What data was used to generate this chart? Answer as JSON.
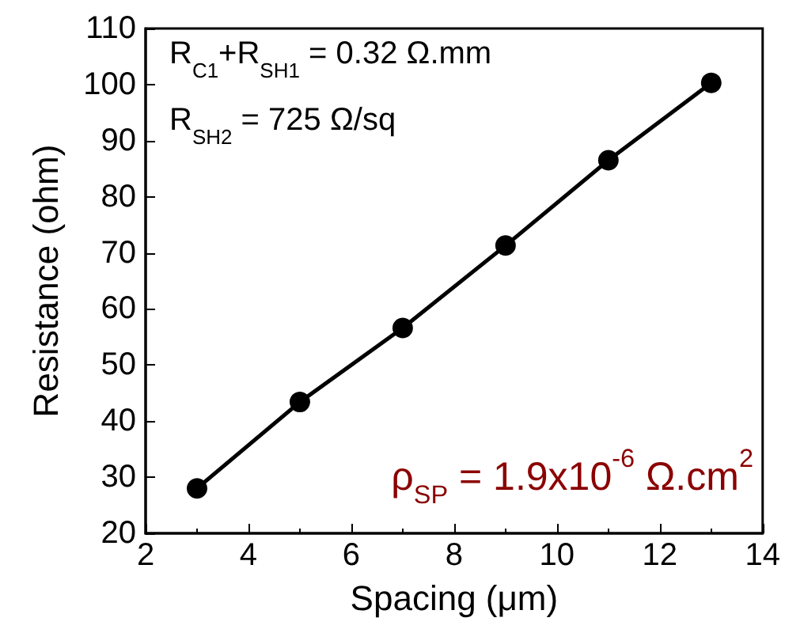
{
  "chart_data": {
    "type": "line",
    "xlabel": "Spacing (μm)",
    "ylabel": "Resistance (ohm)",
    "x": [
      3,
      5,
      7,
      9,
      11,
      13
    ],
    "series": [
      {
        "color": "#000000",
        "values": [
          28,
          43.4,
          56.6,
          71.3,
          86.5,
          100.3
        ]
      }
    ],
    "xlim": [
      2,
      14
    ],
    "xticks": [
      2,
      4,
      6,
      8,
      10,
      12,
      14
    ],
    "ylim": [
      20,
      110
    ],
    "yticks": [
      20,
      30,
      40,
      50,
      60,
      70,
      80,
      90,
      100,
      110
    ],
    "marker": "circle",
    "line_style": "solid",
    "grid": false,
    "annotations": [
      "R$_{C1}$+R$_{SH1}$ = 0.32 Ω.mm",
      "R$_{SH2}$ = 725 Ω/sq",
      "ρ$_{SP}$ = 1.9x10$^{-6}$ Ω.cm$^{2}$"
    ]
  }
}
